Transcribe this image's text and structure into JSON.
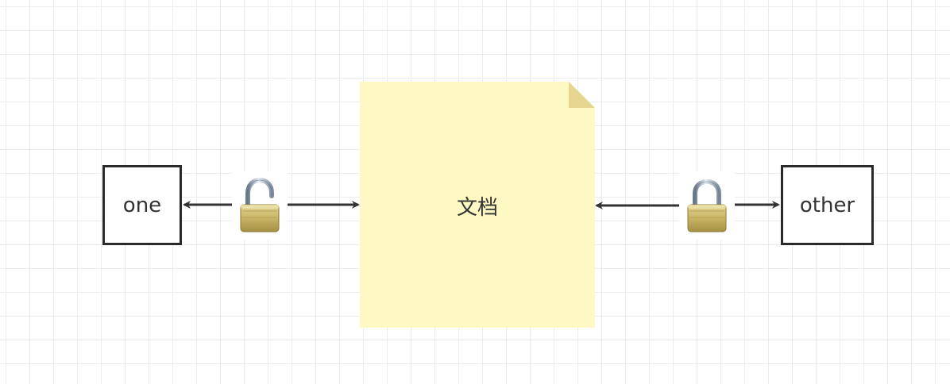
{
  "diagram": {
    "nodes": {
      "one": {
        "label": "one"
      },
      "document": {
        "label": "文档"
      },
      "other": {
        "label": "other"
      }
    },
    "locks": {
      "left": {
        "icon": "unlocked-padlock-icon",
        "state": "unlocked"
      },
      "right": {
        "icon": "locked-padlock-icon",
        "state": "locked"
      }
    },
    "edges": [
      {
        "from": "lock-left",
        "to": "one",
        "arrow": "end"
      },
      {
        "from": "lock-left",
        "to": "document",
        "arrow": "end"
      },
      {
        "from": "lock-right",
        "to": "document",
        "arrow": "end"
      },
      {
        "from": "lock-right",
        "to": "other",
        "arrow": "end"
      }
    ],
    "colors": {
      "note_fill": "#fef8c2",
      "note_fold": "#e6d68f",
      "stroke": "#2a2a2a",
      "grid": "#ececec"
    }
  }
}
